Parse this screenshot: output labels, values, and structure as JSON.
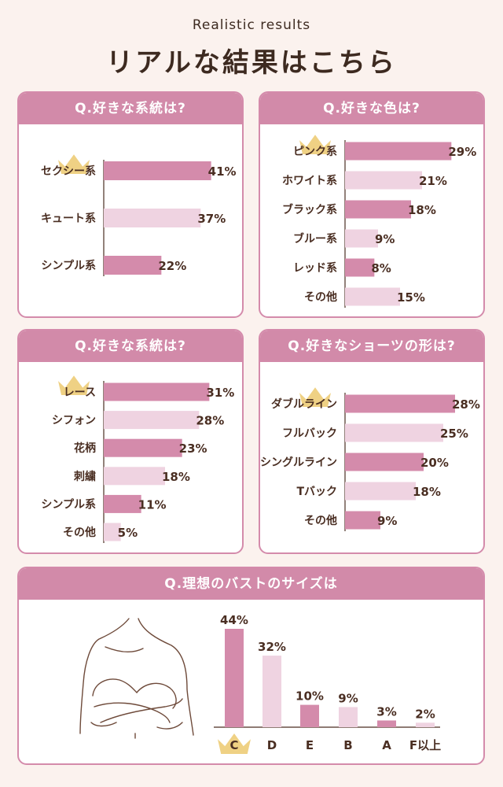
{
  "header": {
    "eyebrow": "Realistic results",
    "title": "リアルな結果はこちら"
  },
  "colors": {
    "dark_bar": "#d48bab",
    "light_bar": "#efd3e1",
    "frame": "#d48bab",
    "text": "#4a2e22",
    "crown": "#ecc96e"
  },
  "chart_data": [
    {
      "type": "bar",
      "orientation": "horizontal",
      "title": "Q.好きな系統は?",
      "categories": [
        "セクシー系",
        "キュート系",
        "シンプル系"
      ],
      "values": [
        41,
        37,
        22
      ],
      "value_labels": [
        "41%",
        "37%",
        "22%"
      ],
      "bar_shades": [
        "dark",
        "light",
        "dark"
      ],
      "unit": "%",
      "crown_on": "セクシー系"
    },
    {
      "type": "bar",
      "orientation": "horizontal",
      "title": "Q.好きな色は?",
      "categories": [
        "ピンク系",
        "ホワイト系",
        "ブラック系",
        "ブルー系",
        "レッド系",
        "その他"
      ],
      "values": [
        29,
        21,
        18,
        9,
        8,
        15
      ],
      "value_labels": [
        "29%",
        "21%",
        "18%",
        "9%",
        "8%",
        "15%"
      ],
      "bar_shades": [
        "dark",
        "light",
        "dark",
        "light",
        "dark",
        "light"
      ],
      "unit": "%",
      "crown_on": "ピンク系"
    },
    {
      "type": "bar",
      "orientation": "horizontal",
      "title": "Q.好きな系統は?",
      "categories": [
        "レース",
        "シフォン",
        "花柄",
        "刺繍",
        "シンプル系",
        "その他"
      ],
      "values": [
        31,
        28,
        23,
        18,
        11,
        5
      ],
      "value_labels": [
        "31%",
        "28%",
        "23%",
        "18%",
        "11%",
        "5%"
      ],
      "bar_shades": [
        "dark",
        "light",
        "dark",
        "light",
        "dark",
        "light"
      ],
      "unit": "%",
      "crown_on": "レース"
    },
    {
      "type": "bar",
      "orientation": "horizontal",
      "title": "Q.好きなショーツの形は?",
      "categories": [
        "ダブルライン",
        "フルバック",
        "シングルライン",
        "Tバック",
        "その他"
      ],
      "values": [
        28,
        25,
        20,
        18,
        9
      ],
      "value_labels": [
        "28%",
        "25%",
        "20%",
        "18%",
        "9%"
      ],
      "bar_shades": [
        "dark",
        "light",
        "dark",
        "light",
        "dark"
      ],
      "unit": "%",
      "crown_on": "ダブルライン"
    },
    {
      "type": "bar",
      "orientation": "vertical",
      "title": "Q.理想のバストのサイズは",
      "categories": [
        "C",
        "D",
        "E",
        "B",
        "A",
        "F以上"
      ],
      "values": [
        44,
        32,
        10,
        9,
        3,
        2
      ],
      "value_labels": [
        "44%",
        "32%",
        "10%",
        "9%",
        "3%",
        "2%"
      ],
      "bar_shades": [
        "dark",
        "light",
        "dark",
        "light",
        "dark",
        "light"
      ],
      "unit": "%",
      "crown_on": "C"
    }
  ]
}
